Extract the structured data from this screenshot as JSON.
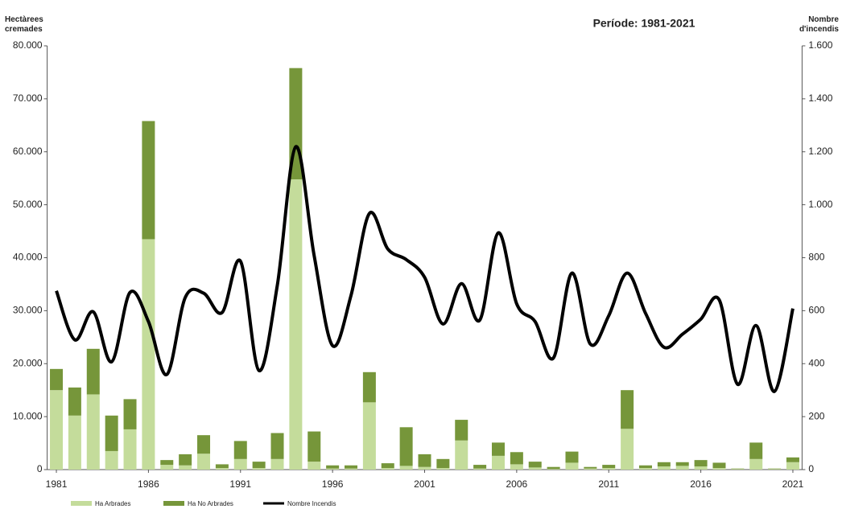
{
  "chart_data": {
    "type": "bar-line",
    "title": "Període: 1981-2021",
    "y_label": "Hectàrees cremades",
    "y2_label": "Nombre d'incendis",
    "x": [
      1981,
      1982,
      1983,
      1984,
      1985,
      1986,
      1987,
      1988,
      1989,
      1990,
      1991,
      1992,
      1993,
      1994,
      1995,
      1996,
      1997,
      1998,
      1999,
      2000,
      2001,
      2002,
      2003,
      2004,
      2005,
      2006,
      2007,
      2008,
      2009,
      2010,
      2011,
      2012,
      2013,
      2014,
      2015,
      2016,
      2017,
      2018,
      2019,
      2020,
      2021
    ],
    "xlim": [
      1980.5,
      2021.5
    ],
    "xticks": [
      1981,
      1986,
      1991,
      1996,
      2001,
      2006,
      2011,
      2016,
      2021
    ],
    "ylim": [
      0,
      80000
    ],
    "yticks": [
      0,
      {
        "value": 10000,
        "label": "10.000"
      },
      {
        "value": 20000,
        "label": "20.000"
      },
      {
        "value": 30000,
        "label": "30.000"
      },
      {
        "value": 40000,
        "label": "40.000"
      },
      {
        "value": 50000,
        "label": "50.000"
      },
      {
        "value": 60000,
        "label": "60.000"
      },
      {
        "value": 70000,
        "label": "70.000"
      },
      {
        "value": 80000,
        "label": "80.000"
      }
    ],
    "y2lim": [
      0,
      1600
    ],
    "y2ticks": [
      0,
      200,
      400,
      600,
      800,
      {
        "value": 1000,
        "label": "1.000"
      },
      {
        "value": 1200,
        "label": "1.200"
      },
      {
        "value": 1400,
        "label": "1.400"
      },
      {
        "value": 1600,
        "label": "1.600"
      }
    ],
    "series": [
      {
        "name": "Ha Arbrades",
        "type": "bar",
        "color": "#c4dc9b",
        "values": [
          15000,
          10200,
          14200,
          3500,
          7600,
          43500,
          900,
          800,
          3000,
          300,
          2000,
          300,
          2000,
          54800,
          1500,
          200,
          200,
          12700,
          300,
          700,
          500,
          300,
          5500,
          200,
          2600,
          1000,
          400,
          100,
          1300,
          200,
          300,
          7700,
          300,
          600,
          700,
          600,
          300,
          100,
          2000,
          100,
          1400
        ]
      },
      {
        "name": "Ha No Arbrades",
        "type": "bar",
        "color": "#76963a",
        "values": [
          4000,
          5300,
          8600,
          6700,
          5700,
          22300,
          900,
          2100,
          3500,
          700,
          3400,
          1200,
          4900,
          21000,
          5700,
          600,
          600,
          5700,
          900,
          7300,
          2400,
          1700,
          3900,
          700,
          2500,
          2300,
          1100,
          400,
          2100,
          300,
          600,
          7300,
          500,
          800,
          700,
          1200,
          1000,
          100,
          3100,
          100,
          900
        ]
      },
      {
        "name": "Nombre Incendis",
        "type": "line",
        "axis": "y2",
        "color": "#000000",
        "values": [
          675,
          490,
          596,
          407,
          669,
          559,
          359,
          650,
          666,
          593,
          787,
          374,
          696,
          1219,
          808,
          468,
          657,
          967,
          833,
          793,
          726,
          550,
          702,
          565,
          894,
          626,
          559,
          422,
          742,
          474,
          581,
          742,
          590,
          462,
          511,
          568,
          641,
          322,
          544,
          295,
          608
        ]
      }
    ]
  }
}
